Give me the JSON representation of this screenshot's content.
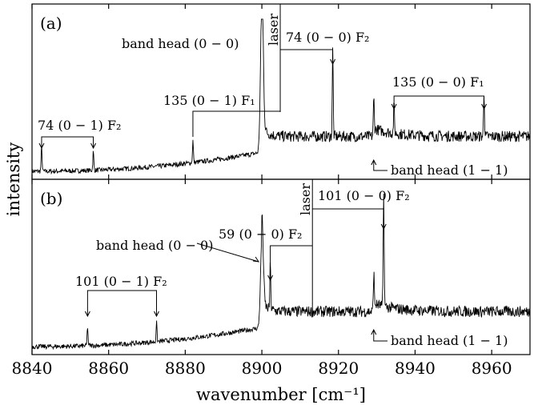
{
  "chart_data": {
    "type": "line",
    "xlabel": "wavenumber [cm⁻¹]",
    "ylabel": "intensity",
    "xlim": [
      8840,
      8970
    ],
    "xticks": [
      8840,
      8860,
      8880,
      8900,
      8920,
      8940,
      8960
    ],
    "x_tick_labels": [
      "8840",
      "8860",
      "8880",
      "8900",
      "8920",
      "8940",
      "8960"
    ],
    "grid": false,
    "panels": [
      {
        "label": "(a)",
        "laser_label": "laser",
        "laser_x": 8904.8,
        "band_head_00_x": 8900,
        "band_head_11_x": 8929.2,
        "peaks": [
          {
            "x": 8842.5,
            "height": 0.16
          },
          {
            "x": 8856.0,
            "height": 0.12
          },
          {
            "x": 8882.0,
            "height": 0.14
          },
          {
            "x": 8900.0,
            "height": 0.95
          },
          {
            "x": 8918.5,
            "height": 0.55
          },
          {
            "x": 8929.2,
            "height": 0.22
          },
          {
            "x": 8934.5,
            "height": 0.18
          },
          {
            "x": 8958.0,
            "height": 0.28
          }
        ],
        "annotations": {
          "left_bracket": "74 (0 − 1) F₂",
          "mid_bracket": "135 (0 − 1) F₁",
          "band_head_00": "band head (0 − 0)",
          "top_bracket": "74 (0 − 0) F₂",
          "right_bracket": "135 (0 − 0) F₁",
          "band_head_11": "band head (1 − 1)"
        }
      },
      {
        "label": "(b)",
        "laser_label": "laser",
        "laser_x": 8913.2,
        "band_head_00_x": 8900,
        "band_head_11_x": 8929.2,
        "peaks": [
          {
            "x": 8854.5,
            "height": 0.12
          },
          {
            "x": 8872.5,
            "height": 0.12
          },
          {
            "x": 8900.0,
            "height": 0.55
          },
          {
            "x": 8902.2,
            "height": 0.28
          },
          {
            "x": 8929.2,
            "height": 0.22
          },
          {
            "x": 8931.8,
            "height": 0.75
          }
        ],
        "annotations": {
          "left_bracket": "101 (0 − 1) F₂",
          "band_head_00": "band head (0 − 0)",
          "mid_bracket": "59 (0 − 0) F₂",
          "top_bracket": "101 (0 − 0) F₂",
          "band_head_11": "band head (1 − 1)"
        }
      }
    ]
  }
}
